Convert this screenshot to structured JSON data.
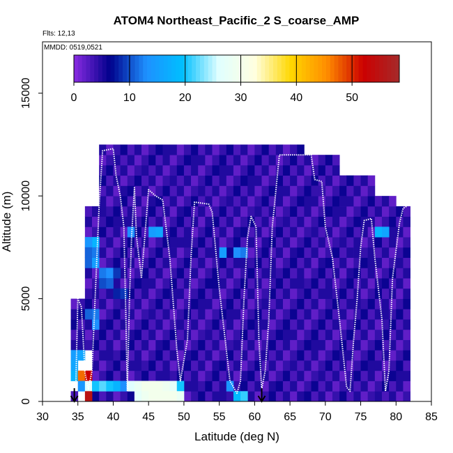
{
  "chart_data": {
    "type": "heatmap",
    "title": "ATOM4 Northeast_Pacific_2 S_coarse_AMP",
    "flights_label": "Flts: 12,13",
    "mmdd_label": "MMDD: 0519,0521",
    "xlabel": "Latitude (deg N)",
    "ylabel": "Altitude (m)",
    "xlim": [
      30,
      85
    ],
    "ylim": [
      0,
      17500
    ],
    "x_ticks": [
      30,
      35,
      40,
      45,
      50,
      55,
      60,
      65,
      70,
      75,
      80,
      85
    ],
    "y_ticks": [
      0,
      5000,
      10000,
      15000
    ],
    "colorbar": {
      "range": [
        0,
        58.5
      ],
      "ticks": [
        0,
        10,
        20,
        30,
        40,
        50
      ],
      "colors": [
        "#8a2be2",
        "#00008b",
        "#1e90ff",
        "#00bfff",
        "#e0ffff",
        "#ffffe0",
        "#ffd700",
        "#ff8c00",
        "#cc0000",
        "#a52a2a"
      ]
    },
    "cell_size": {
      "lat": 1,
      "alt": 500
    },
    "cells": [
      [
        34,
        2000,
        15
      ],
      [
        34,
        1500,
        16
      ],
      [
        34,
        1000,
        18
      ],
      [
        35,
        2000,
        16
      ],
      [
        35,
        1000,
        47
      ],
      [
        36,
        1000,
        52
      ],
      [
        35,
        500,
        14
      ],
      [
        36,
        500,
        26
      ],
      [
        36,
        0,
        55
      ],
      [
        34,
        0,
        3
      ],
      [
        37,
        500,
        20
      ],
      [
        38,
        500,
        22
      ],
      [
        39,
        500,
        20
      ],
      [
        40,
        500,
        18
      ],
      [
        41,
        500,
        13
      ],
      [
        42,
        500,
        26
      ],
      [
        43,
        500,
        28
      ],
      [
        44,
        500,
        30
      ],
      [
        45,
        500,
        30
      ],
      [
        46,
        500,
        30
      ],
      [
        47,
        500,
        29
      ],
      [
        48,
        500,
        27
      ],
      [
        49,
        500,
        20
      ],
      [
        56,
        500,
        14
      ],
      [
        43,
        0,
        27
      ],
      [
        44,
        0,
        29
      ],
      [
        45,
        0,
        30
      ],
      [
        46,
        0,
        30
      ],
      [
        47,
        0,
        30
      ],
      [
        48,
        0,
        30
      ],
      [
        49,
        0,
        28
      ],
      [
        57,
        0,
        19
      ],
      [
        58,
        0,
        21
      ],
      [
        36,
        6500,
        11
      ],
      [
        37,
        6500,
        15
      ],
      [
        37,
        7500,
        18
      ],
      [
        36,
        7500,
        14
      ],
      [
        36,
        7000,
        11
      ],
      [
        37,
        7000,
        12
      ],
      [
        38,
        6000,
        12
      ],
      [
        39,
        6000,
        13
      ],
      [
        38,
        5500,
        10
      ],
      [
        39,
        5500,
        11
      ],
      [
        40,
        6000,
        9
      ],
      [
        37,
        3500,
        13
      ],
      [
        37,
        4000,
        12
      ],
      [
        36,
        4000,
        11
      ],
      [
        40,
        5000,
        8
      ],
      [
        41,
        5000,
        9
      ],
      [
        42,
        8000,
        13
      ],
      [
        45,
        8000,
        15
      ],
      [
        46,
        8000,
        16
      ],
      [
        55,
        7000,
        15
      ],
      [
        57,
        7000,
        13
      ],
      [
        58,
        7000,
        12
      ],
      [
        77,
        8000,
        18
      ],
      [
        78,
        8000,
        16
      ],
      [
        39,
        8500,
        6
      ],
      [
        40,
        8500,
        5
      ],
      [
        47,
        7500,
        6
      ],
      [
        48,
        7500,
        5
      ],
      [
        68,
        10000,
        4
      ],
      [
        69,
        10000,
        4
      ],
      [
        72,
        9500,
        5
      ],
      [
        74,
        7000,
        5
      ],
      [
        76,
        6500,
        5
      ],
      [
        54,
        5500,
        6
      ],
      [
        61,
        4500,
        5
      ]
    ],
    "flight_tracks": [
      [
        [
          34.7,
          600
        ],
        [
          35.0,
          5000
        ],
        [
          35.5,
          4600
        ],
        [
          36.0,
          1400
        ],
        [
          36.5,
          600
        ],
        [
          37.0,
          1500
        ],
        [
          38.0,
          9500
        ],
        [
          38.5,
          12200
        ],
        [
          40.0,
          12300
        ],
        [
          40.4,
          11000
        ],
        [
          41.0,
          10000
        ],
        [
          41.5,
          8500
        ],
        [
          41.8,
          4000
        ],
        [
          42.0,
          500
        ],
        [
          42.3,
          5000
        ],
        [
          42.6,
          8000
        ],
        [
          43.0,
          10400
        ],
        [
          43.3,
          8000
        ],
        [
          44.0,
          6000
        ],
        [
          45.0,
          10300
        ],
        [
          46.0,
          10000
        ],
        [
          47.0,
          9800
        ],
        [
          48.0,
          7000
        ],
        [
          49.0,
          2500
        ],
        [
          49.5,
          1000
        ],
        [
          50.5,
          3000
        ],
        [
          51.0,
          7000
        ],
        [
          51.5,
          9700
        ],
        [
          53.5,
          9600
        ],
        [
          54.0,
          9200
        ],
        [
          55.0,
          5500
        ],
        [
          56.5,
          1000
        ],
        [
          57.5,
          400
        ],
        [
          58.0,
          1000
        ],
        [
          58.5,
          5000
        ],
        [
          59.0,
          8000
        ],
        [
          59.5,
          9000
        ],
        [
          60.2,
          8500
        ],
        [
          60.6,
          3000
        ],
        [
          61.0,
          600
        ],
        [
          61.5,
          1500
        ],
        [
          62.0,
          4000
        ],
        [
          62.5,
          8500
        ],
        [
          63.5,
          12000
        ],
        [
          68.0,
          12000
        ],
        [
          68.5,
          10800
        ],
        [
          69.5,
          10700
        ],
        [
          70.0,
          8500
        ],
        [
          71.0,
          7000
        ],
        [
          72.0,
          4000
        ],
        [
          73.0,
          700
        ],
        [
          73.5,
          500
        ],
        [
          74.0,
          3000
        ],
        [
          74.5,
          5000
        ],
        [
          75.0,
          7500
        ],
        [
          75.5,
          8800
        ],
        [
          76.5,
          8900
        ],
        [
          77.0,
          7000
        ],
        [
          78.0,
          4000
        ],
        [
          78.5,
          500
        ],
        [
          79.0,
          1500
        ],
        [
          79.5,
          6000
        ],
        [
          80.5,
          8700
        ],
        [
          81.0,
          9400
        ],
        [
          81.5,
          9500
        ]
      ]
    ],
    "flight_markers": [
      34.5,
      61.0
    ]
  }
}
